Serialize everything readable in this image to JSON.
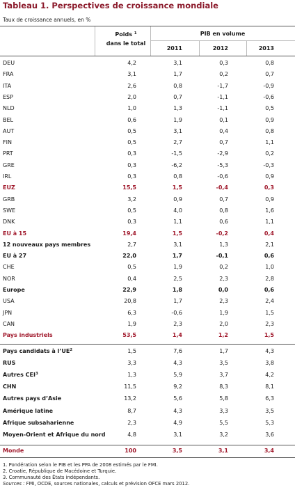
{
  "header": {
    "title": "Tableau 1. Perspectives de croissance mondiale",
    "subtitle": "Taux de croissance annuels, en %"
  },
  "table": {
    "columns": {
      "weight": {
        "line1": "Poids",
        "note": "1",
        "line2": "dans le total"
      },
      "group": "PIB en volume",
      "years": [
        "2011",
        "2012",
        "2013"
      ]
    },
    "rows": [
      {
        "label": "DEU",
        "values": [
          "4,2",
          "3,1",
          "0,3",
          "0,8"
        ]
      },
      {
        "label": "FRA",
        "values": [
          "3,1",
          "1,7",
          "0,2",
          "0,7"
        ]
      },
      {
        "label": "ITA",
        "values": [
          "2,6",
          "0,8",
          "-1,7",
          "-0,9"
        ]
      },
      {
        "label": "ESP",
        "values": [
          "2,0",
          "0,7",
          "-1,1",
          "-0,6"
        ]
      },
      {
        "label": "NLD",
        "values": [
          "1,0",
          "1,3",
          "-1,1",
          "0,5"
        ]
      },
      {
        "label": "BEL",
        "values": [
          "0,6",
          "1,9",
          "0,1",
          "0,9"
        ]
      },
      {
        "label": "AUT",
        "values": [
          "0,5",
          "3,1",
          "0,4",
          "0,8"
        ]
      },
      {
        "label": "FIN",
        "values": [
          "0,5",
          "2,7",
          "0,7",
          "1,1"
        ]
      },
      {
        "label": "PRT",
        "values": [
          "0,3",
          "-1,5",
          "-2,9",
          "0,2"
        ]
      },
      {
        "label": "GRE",
        "values": [
          "0,3",
          "-6,2",
          "-5,3",
          "-0,3"
        ]
      },
      {
        "label": "IRL",
        "values": [
          "0,3",
          "0,8",
          "-0,6",
          "0,9"
        ]
      },
      {
        "label": "EUZ",
        "values": [
          "15,5",
          "1,5",
          "-0,4",
          "0,3"
        ]
      },
      {
        "label": "GRB",
        "values": [
          "3,2",
          "0,9",
          "0,7",
          "0,9"
        ]
      },
      {
        "label": "SWE",
        "values": [
          "0,5",
          "4,0",
          "0,8",
          "1,6"
        ]
      },
      {
        "label": "DNK",
        "values": [
          "0,3",
          "1,1",
          "0,6",
          "1,1"
        ]
      },
      {
        "label": "EU à 15",
        "values": [
          "19,4",
          "1,5",
          "-0,2",
          "0,4"
        ]
      },
      {
        "label": "12 nouveaux pays membres",
        "values": [
          "2,7",
          "3,1",
          "1,3",
          "2,1"
        ]
      },
      {
        "label": "EU à 27",
        "values": [
          "22,0",
          "1,7",
          "-0,1",
          "0,6"
        ]
      },
      {
        "label": "CHE",
        "values": [
          "0,5",
          "1,9",
          "0,2",
          "1,0"
        ]
      },
      {
        "label": "NOR",
        "values": [
          "0,4",
          "2,5",
          "2,3",
          "2,8"
        ]
      },
      {
        "label": "Europe",
        "values": [
          "22,9",
          "1,8",
          "0,0",
          "0,6"
        ]
      },
      {
        "label": "USA",
        "values": [
          "20,8",
          "1,7",
          "2,3",
          "2,4"
        ]
      },
      {
        "label": "JPN",
        "values": [
          "6,3",
          "-0,6",
          "1,9",
          "1,5"
        ]
      },
      {
        "label": "CAN",
        "values": [
          "1,9",
          "2,3",
          "2,0",
          "2,3"
        ]
      },
      {
        "label": "Pays industriels",
        "values": [
          "53,5",
          "1,4",
          "1,2",
          "1,5"
        ]
      },
      {
        "label": "Pays candidats à l’UE",
        "note": "2",
        "values": [
          "1,5",
          "7,6",
          "1,7",
          "4,3"
        ]
      },
      {
        "label": "RUS",
        "values": [
          "3,3",
          "4,3",
          "3,5",
          "3,8"
        ]
      },
      {
        "label": "Autres CEI",
        "note": "3",
        "values": [
          "1,3",
          "5,9",
          "3,7",
          "4,2"
        ]
      },
      {
        "label": "CHN",
        "values": [
          "11,5",
          "9,2",
          "8,3",
          "8,1"
        ]
      },
      {
        "label": "Autres pays d’Asie",
        "values": [
          "13,2",
          "5,6",
          "5,8",
          "6,3"
        ]
      },
      {
        "label": "Amérique latine",
        "values": [
          "8,7",
          "4,3",
          "3,3",
          "3,5"
        ]
      },
      {
        "label": "Afrique subsaharienne",
        "values": [
          "2,3",
          "4,9",
          "5,5",
          "5,3"
        ]
      },
      {
        "label": "Moyen-Orient et Afrique du nord",
        "values": [
          "4,8",
          "3,1",
          "3,2",
          "3,6"
        ]
      },
      {
        "label": "Monde",
        "values": [
          "100",
          "3,5",
          "3,1",
          "3,4"
        ]
      }
    ]
  },
  "footnotes": [
    "1. Pondération selon le PIB et les PPA de 2008 estimés par le FMI.",
    "2. Croatie, République de Macédoine et Turquie.",
    "3. Communauté des États indépendants."
  ],
  "sources": {
    "label": "Sources :",
    "text": "FMI, OCDE, sources nationales, calculs et prévision OFCE mars 2012."
  }
}
